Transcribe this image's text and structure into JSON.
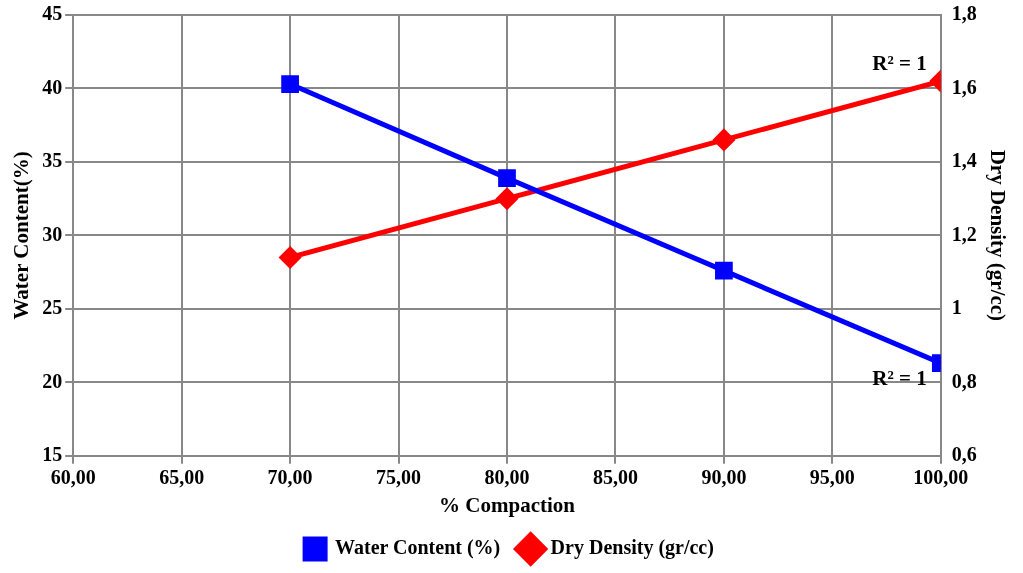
{
  "chart_data": {
    "type": "line",
    "xlabel": "% Compaction",
    "ylabel": "Water Content(%)",
    "y2label": "Dry Density (gr/cc)",
    "x": [
      70,
      80,
      90,
      100
    ],
    "series": [
      {
        "name": "Water Content (%)",
        "color": "#0000ff",
        "values": [
          40.3,
          33.9,
          27.6,
          21.3
        ],
        "marker": "square"
      },
      {
        "name": "Dry Density (gr/cc)",
        "color": "#ff0000",
        "values": [
          1.14,
          1.3,
          1.46,
          1.62
        ],
        "axis": "y2",
        "marker": "diamond"
      }
    ],
    "xlim": [
      60,
      100
    ],
    "xticks": [
      {
        "value": 60,
        "label": "60,00"
      },
      {
        "value": 65,
        "label": "65,00"
      },
      {
        "value": 70,
        "label": "70,00"
      },
      {
        "value": 75,
        "label": "75,00"
      },
      {
        "value": 80,
        "label": "80,00"
      },
      {
        "value": 85,
        "label": "85,00"
      },
      {
        "value": 90,
        "label": "90,00"
      },
      {
        "value": 95,
        "label": "95,00"
      },
      {
        "value": 100,
        "label": "100,00"
      }
    ],
    "ylim": [
      15,
      45
    ],
    "yticks": [
      15,
      20,
      25,
      30,
      35,
      40,
      45
    ],
    "y2lim": [
      0.6,
      1.8
    ],
    "y2ticks": [
      {
        "value": 0.6,
        "label": "0,6"
      },
      {
        "value": 0.8,
        "label": "0,8"
      },
      1,
      {
        "value": 1.2,
        "label": "1,2"
      },
      {
        "value": 1.4,
        "label": "1,4"
      },
      {
        "value": 1.6,
        "label": "1,6"
      },
      {
        "value": 1.8,
        "label": "1,8"
      }
    ],
    "annotations": [
      {
        "text": "R² = 1",
        "x": 100,
        "y": 40.5
      },
      {
        "text": "R² = 1",
        "x": 100,
        "y": 21.3
      }
    ],
    "grid": true,
    "legend": "bottom",
    "line_style": "solid"
  }
}
